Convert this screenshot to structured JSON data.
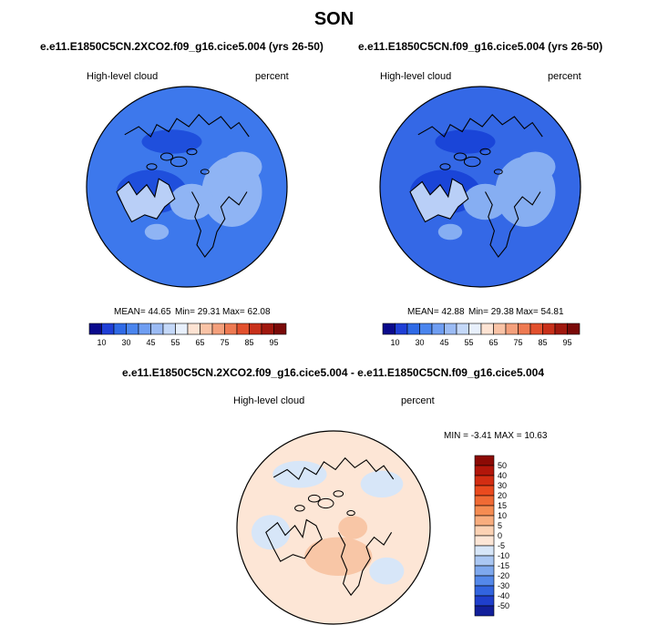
{
  "figure": {
    "season": "SON"
  },
  "chart_data": [
    {
      "type": "heatmap",
      "title": "e.e11.E1850C5CN.2XCO2.f09_g16.cice5.004 (yrs 26-50)",
      "variable": "High-level cloud",
      "units": "percent",
      "projection": "north polar stereographic",
      "stats": {
        "mean_text": "MEAN=  44.65",
        "min_text": "Min=  29.31",
        "max_text": "Max=  62.08",
        "mean": 44.65,
        "min": 29.31,
        "max": 62.08
      },
      "colorbar": {
        "ticks": [
          "10",
          "30",
          "45",
          "55",
          "65",
          "75",
          "85",
          "95"
        ],
        "colors": [
          "#0a0a8c",
          "#1f3fd6",
          "#2f6ae6",
          "#4a85ee",
          "#6f9ef2",
          "#9bbbf4",
          "#c4d8f8",
          "#e8f0fc",
          "#fde3d3",
          "#f9c3a6",
          "#f4a07c",
          "#ee7a52",
          "#e2502d",
          "#c8301a",
          "#a0180e",
          "#7a0a08"
        ]
      },
      "palette": {
        "dominant": "#3d78ec",
        "light": "#8fb4f4",
        "deep": "#1f4fdc"
      }
    },
    {
      "type": "heatmap",
      "title": "e.e11.E1850C5CN.f09_g16.cice5.004 (yrs 26-50)",
      "variable": "High-level cloud",
      "units": "percent",
      "projection": "north polar stereographic",
      "stats": {
        "mean_text": "MEAN=  42.88",
        "min_text": "Min=  29.38",
        "max_text": "Max=  54.81",
        "mean": 42.88,
        "min": 29.38,
        "max": 54.81
      },
      "colorbar": {
        "ticks": [
          "10",
          "30",
          "45",
          "55",
          "65",
          "75",
          "85",
          "95"
        ],
        "colors": [
          "#0a0a8c",
          "#1f3fd6",
          "#2f6ae6",
          "#4a85ee",
          "#6f9ef2",
          "#9bbbf4",
          "#c4d8f8",
          "#e8f0fc",
          "#fde3d3",
          "#f9c3a6",
          "#f4a07c",
          "#ee7a52",
          "#e2502d",
          "#c8301a",
          "#a0180e",
          "#7a0a08"
        ]
      },
      "palette": {
        "dominant": "#3468e6",
        "light": "#86aef2",
        "deep": "#1a45d8"
      }
    },
    {
      "type": "heatmap",
      "title": "e.e11.E1850C5CN.2XCO2.f09_g16.cice5.004 - e.e11.E1850C5CN.f09_g16.cice5.004",
      "variable": "High-level cloud",
      "units": "percent",
      "projection": "north polar stereographic",
      "stats": {
        "text": "MIN =  -3.41 MAX =  10.63",
        "min": -3.41,
        "max": 10.63
      },
      "colorbar": {
        "ticks": [
          "50",
          "40",
          "30",
          "20",
          "15",
          "10",
          "5",
          "0",
          "-5",
          "-10",
          "-15",
          "-20",
          "-30",
          "-40",
          "-50"
        ],
        "colors": [
          "#8c0a05",
          "#b2160a",
          "#d32d12",
          "#ea4a1e",
          "#f06a34",
          "#f58c52",
          "#f8ad7e",
          "#fcd2b4",
          "#fde6d6",
          "#d7e6f8",
          "#aac7f3",
          "#7ea8ee",
          "#5488ea",
          "#3264df",
          "#1f3fcc",
          "#121f9a"
        ]
      },
      "palette": {
        "dominant": "#fde6d6",
        "blue_patch": "#d7e6f8",
        "warm_patch": "#f8c6a6"
      }
    }
  ]
}
